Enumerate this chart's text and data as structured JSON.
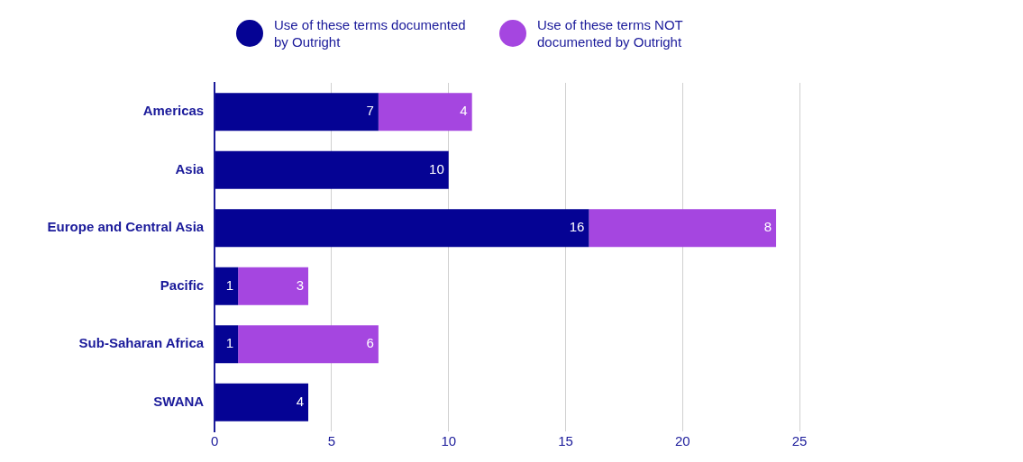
{
  "chart_data": {
    "type": "bar",
    "orientation": "horizontal",
    "stacked": true,
    "categories": [
      "Americas",
      "Asia",
      "Europe and Central Asia",
      "Pacific",
      "Sub-Saharan Africa",
      "SWANA"
    ],
    "series": [
      {
        "name": "Use of these terms documented by Outright",
        "color": "#050394",
        "values": [
          7,
          10,
          16,
          1,
          1,
          4
        ]
      },
      {
        "name": "Use of these terms NOT documented by Outright",
        "color": "#a546e0",
        "values": [
          4,
          null,
          8,
          3,
          6,
          null
        ]
      }
    ],
    "xlim": [
      0,
      25
    ],
    "xticks": [
      0,
      5,
      10,
      15,
      20,
      25
    ],
    "grid": "x",
    "legend": "top",
    "data_labels": true
  }
}
